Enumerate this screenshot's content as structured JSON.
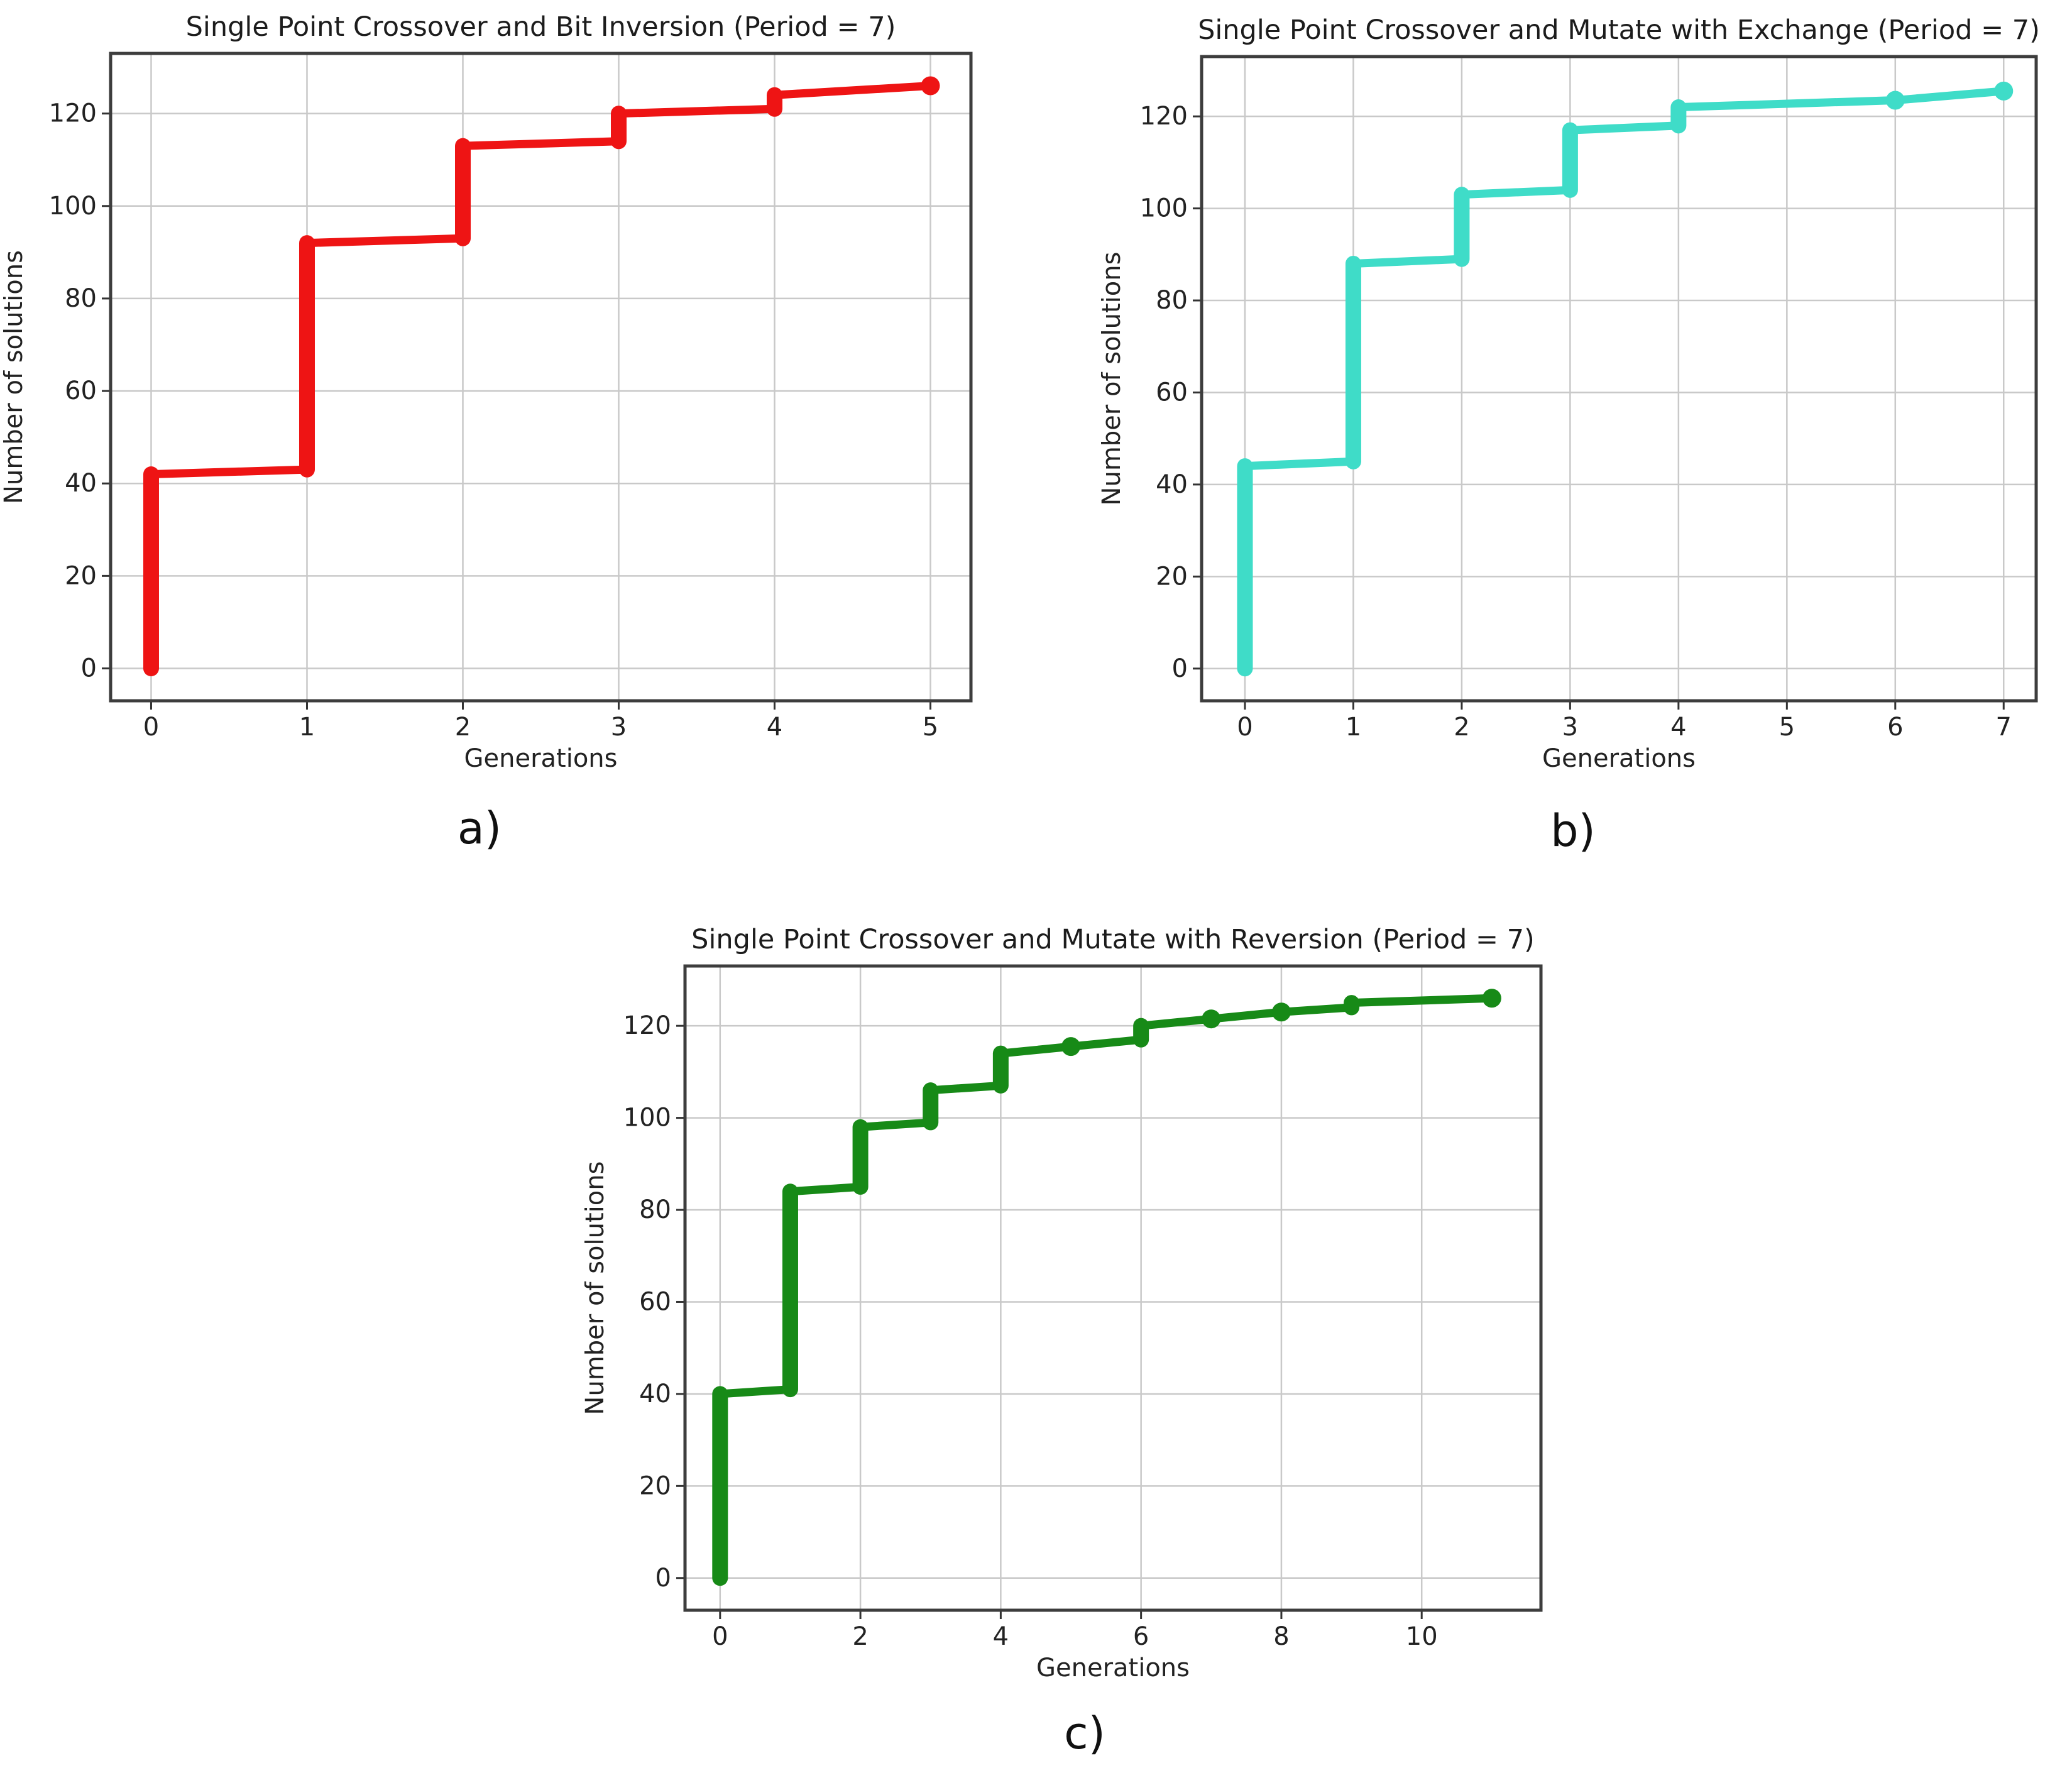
{
  "figure": {
    "background": "#ffffff"
  },
  "captions": {
    "a": "a)",
    "b": "b)",
    "c": "c)"
  },
  "chart_data": [
    {
      "id": "a",
      "type": "line",
      "title": "Single Point Crossover and Bit Inversion (Period = 7)",
      "xlabel": "Generations",
      "ylabel": "Number of solutions",
      "color": "#ee1414",
      "grid": true,
      "legend": "none",
      "xlim": [
        -0.26,
        5.26
      ],
      "ylim": [
        -7,
        133
      ],
      "xticks": [
        0,
        1,
        2,
        3,
        4,
        5
      ],
      "yticks": [
        0,
        20,
        40,
        60,
        80,
        100,
        120
      ],
      "line": [
        [
          0,
          0
        ],
        [
          0,
          42
        ],
        [
          1,
          43
        ],
        [
          1,
          92
        ],
        [
          2,
          93
        ],
        [
          2,
          113
        ],
        [
          3,
          114
        ],
        [
          3,
          120
        ],
        [
          4,
          121
        ],
        [
          4,
          124
        ],
        [
          5,
          126
        ]
      ],
      "thick_segments": [
        [
          0,
          0,
          42
        ],
        [
          1,
          43,
          92
        ],
        [
          2,
          93,
          113
        ],
        [
          3,
          114,
          120
        ],
        [
          4,
          121,
          124
        ]
      ],
      "markers": [
        [
          5,
          126
        ]
      ]
    },
    {
      "id": "b",
      "type": "line",
      "title": "Single Point Crossover and Mutate with Exchange (Period = 7)",
      "xlabel": "Generations",
      "ylabel": "Number of solutions",
      "color": "#3fdcc8",
      "grid": true,
      "legend": "none",
      "xlim": [
        -0.4,
        7.3
      ],
      "ylim": [
        -7,
        133
      ],
      "xticks": [
        0,
        1,
        2,
        3,
        4,
        5,
        6,
        7
      ],
      "yticks": [
        0,
        20,
        40,
        60,
        80,
        100,
        120
      ],
      "line": [
        [
          0,
          0
        ],
        [
          0,
          44
        ],
        [
          1,
          45
        ],
        [
          1,
          88
        ],
        [
          2,
          89
        ],
        [
          2,
          103
        ],
        [
          3,
          104
        ],
        [
          3,
          117
        ],
        [
          4,
          118
        ],
        [
          4,
          122
        ],
        [
          6,
          123.5
        ],
        [
          7,
          125.5
        ]
      ],
      "thick_segments": [
        [
          0,
          0,
          44
        ],
        [
          1,
          45,
          88
        ],
        [
          2,
          89,
          103
        ],
        [
          3,
          104,
          117
        ],
        [
          4,
          118,
          122
        ]
      ],
      "markers": [
        [
          6,
          123.5
        ],
        [
          7,
          125.5
        ]
      ]
    },
    {
      "id": "c",
      "type": "line",
      "title": "Single Point Crossover and Mutate with Reversion (Period = 7)",
      "xlabel": "Generations",
      "ylabel": "Number of solutions",
      "color": "#178a17",
      "grid": true,
      "legend": "none",
      "xlim": [
        -0.5,
        11.7
      ],
      "ylim": [
        -7,
        133
      ],
      "xticks": [
        0,
        2,
        4,
        6,
        8,
        10
      ],
      "yticks": [
        0,
        20,
        40,
        60,
        80,
        100,
        120
      ],
      "line": [
        [
          0,
          0
        ],
        [
          0,
          40
        ],
        [
          1,
          41
        ],
        [
          1,
          84
        ],
        [
          2,
          85
        ],
        [
          2,
          98
        ],
        [
          3,
          99
        ],
        [
          3,
          106
        ],
        [
          4,
          107
        ],
        [
          4,
          114
        ],
        [
          5,
          115.5
        ],
        [
          6,
          117
        ],
        [
          6,
          120
        ],
        [
          7,
          121.5
        ],
        [
          8,
          123
        ],
        [
          9,
          124
        ],
        [
          9,
          125
        ],
        [
          11,
          126
        ]
      ],
      "thick_segments": [
        [
          0,
          0,
          40
        ],
        [
          1,
          41,
          84
        ],
        [
          2,
          85,
          98
        ],
        [
          3,
          99,
          106
        ],
        [
          4,
          107,
          114
        ],
        [
          6,
          117,
          120
        ],
        [
          9,
          124,
          125
        ]
      ],
      "markers": [
        [
          5,
          115.5
        ],
        [
          7,
          121.5
        ],
        [
          8,
          123
        ],
        [
          11,
          126
        ]
      ]
    }
  ]
}
